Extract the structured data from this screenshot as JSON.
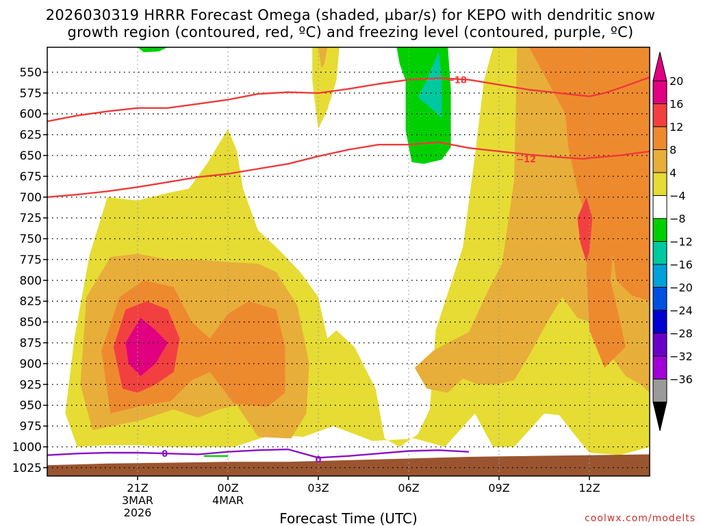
{
  "chart_data": {
    "type": "heatmap",
    "title_line1": "2026030319 HRRR Forecast Omega (shaded, µbar/s) for KEPO with dendritic snow",
    "title_line2": "growth region (contoured, red, ºC) and freezing level (contoured, purple, ºC)",
    "xlabel": "Forecast Time (UTC)",
    "credit": "coolwx.com/modelts",
    "ylabel": "",
    "y_axis": {
      "scale": "pressure (hPa), inverted",
      "ylim": [
        1035,
        520
      ],
      "ticks": [
        550,
        575,
        600,
        625,
        650,
        675,
        700,
        725,
        750,
        775,
        800,
        825,
        850,
        875,
        900,
        925,
        950,
        975,
        1000,
        1025
      ]
    },
    "x_axis": {
      "ticks": [
        {
          "hour": 21,
          "label": "21Z",
          "sub1": "3MAR",
          "sub2": "2026"
        },
        {
          "hour": 24,
          "label": "00Z",
          "sub1": "4MAR",
          "sub2": ""
        },
        {
          "hour": 27,
          "label": "03Z",
          "sub1": "",
          "sub2": ""
        },
        {
          "hour": 30,
          "label": "06Z",
          "sub1": "",
          "sub2": ""
        },
        {
          "hour": 33,
          "label": "09Z",
          "sub1": "",
          "sub2": ""
        },
        {
          "hour": 36,
          "label": "12Z",
          "sub1": "",
          "sub2": ""
        }
      ],
      "xlim": [
        18.0,
        38.0
      ]
    },
    "colorbar": {
      "labels": [
        "20",
        "16",
        "12",
        "8",
        "4",
        "−4",
        "−8",
        "−12",
        "−16",
        "−20",
        "−24",
        "−28",
        "−32",
        "−36"
      ],
      "colors": [
        "#E00080",
        "#F24040",
        "#EE8A2E",
        "#E8AE3A",
        "#E6DC34",
        "#FFFFFF",
        "#00D000",
        "#00C8A0",
        "#00A0D8",
        "#0050E0",
        "#0000D0",
        "#6A00C8",
        "#A000D8",
        "#9A9A9A"
      ],
      "top_color": "#E00080",
      "bottom_color": "#000000"
    },
    "contours": [
      {
        "name": "−18",
        "color": "#EE3A3A",
        "points": [
          [
            18,
            609
          ],
          [
            19,
            602
          ],
          [
            20,
            597
          ],
          [
            21,
            593
          ],
          [
            22,
            593
          ],
          [
            23,
            588
          ],
          [
            24,
            583
          ],
          [
            25,
            576
          ],
          [
            26,
            574
          ],
          [
            27,
            575
          ],
          [
            28,
            570
          ],
          [
            29,
            564
          ],
          [
            30,
            559
          ],
          [
            31,
            557
          ],
          [
            32,
            559
          ],
          [
            33,
            565
          ],
          [
            34,
            571
          ],
          [
            35,
            575
          ],
          [
            36,
            579
          ],
          [
            36.5,
            575
          ],
          [
            37,
            569
          ],
          [
            38,
            556
          ]
        ]
      },
      {
        "name": "−12",
        "color": "#EE3A3A",
        "points": [
          [
            18,
            700
          ],
          [
            19,
            697
          ],
          [
            20,
            693
          ],
          [
            21,
            688
          ],
          [
            22,
            682
          ],
          [
            23,
            676
          ],
          [
            24,
            672
          ],
          [
            25,
            666
          ],
          [
            26,
            660
          ],
          [
            27,
            651
          ],
          [
            28,
            643
          ],
          [
            29,
            637
          ],
          [
            30,
            637
          ],
          [
            31,
            634
          ],
          [
            32,
            641
          ],
          [
            33,
            645
          ],
          [
            34,
            649
          ],
          [
            35,
            652
          ],
          [
            35.8,
            654
          ],
          [
            36,
            653
          ],
          [
            37,
            650
          ],
          [
            38,
            645
          ]
        ]
      },
      {
        "name": "0",
        "color": "#8A10C8",
        "points": [
          [
            18,
            1010
          ],
          [
            19,
            1008
          ],
          [
            20,
            1007
          ],
          [
            21,
            1007
          ],
          [
            22,
            1008
          ],
          [
            23,
            1009
          ],
          [
            24,
            1006
          ],
          [
            25,
            1004
          ],
          [
            26,
            1003
          ],
          [
            27,
            1013
          ],
          [
            28,
            1011
          ],
          [
            29,
            1008
          ],
          [
            30,
            1005
          ],
          [
            31,
            1004
          ],
          [
            32,
            1006
          ]
        ]
      }
    ],
    "contour_labels": [
      {
        "text": "−18",
        "hour": 31.6,
        "p": 559,
        "color": "#EE3A3A"
      },
      {
        "text": "−12",
        "hour": 33.9,
        "p": 654,
        "color": "#EE3A3A"
      },
      {
        "text": "0",
        "hour": 21.9,
        "p": 1008,
        "color": "#8A10C8"
      },
      {
        "text": "0",
        "hour": 27.0,
        "p": 1015,
        "color": "#8A10C8"
      }
    ],
    "shaded_regions": [
      {
        "fill": "#E6DC34",
        "points": [
          [
            19,
            1000
          ],
          [
            18.6,
            960
          ],
          [
            18.9,
            870
          ],
          [
            19.4,
            770
          ],
          [
            20,
            700
          ],
          [
            21,
            704
          ],
          [
            22,
            695
          ],
          [
            22.7,
            690
          ],
          [
            23.3,
            660
          ],
          [
            24,
            618
          ],
          [
            24.3,
            645
          ],
          [
            24.5,
            690
          ],
          [
            25,
            740
          ],
          [
            25.6,
            760
          ],
          [
            26.4,
            790
          ],
          [
            27,
            820
          ],
          [
            27.3,
            870
          ],
          [
            27.6,
            860
          ],
          [
            28.2,
            880
          ],
          [
            28.9,
            930
          ],
          [
            29.2,
            990
          ],
          [
            29.7,
            1000
          ],
          [
            30.3,
            985
          ],
          [
            30.7,
            955
          ],
          [
            30.9,
            860
          ],
          [
            31.3,
            815
          ],
          [
            31.8,
            760
          ],
          [
            32.2,
            650
          ],
          [
            32.5,
            560
          ],
          [
            32.8,
            520
          ],
          [
            38,
            520
          ],
          [
            38,
            1000
          ],
          [
            37,
            1010
          ],
          [
            36,
            1007
          ],
          [
            35.5,
            985
          ],
          [
            35,
            962
          ],
          [
            34.5,
            960
          ],
          [
            33.5,
            1000
          ],
          [
            32.8,
            1000
          ],
          [
            32.2,
            960
          ],
          [
            31.2,
            1000
          ],
          [
            30.2,
            990
          ],
          [
            28.8,
            993
          ],
          [
            27.5,
            975
          ],
          [
            26.5,
            988
          ],
          [
            25.5,
            985
          ],
          [
            24.2,
            1000
          ],
          [
            23,
            1000
          ],
          [
            22,
            1000
          ],
          [
            21,
            998
          ],
          [
            20,
            998
          ]
        ]
      },
      {
        "fill": "#E6DC34",
        "points": [
          [
            26.8,
            520
          ],
          [
            27.7,
            520
          ],
          [
            27.6,
            560
          ],
          [
            27.3,
            595
          ],
          [
            27.0,
            618
          ],
          [
            26.9,
            590
          ],
          [
            26.8,
            560
          ]
        ]
      },
      {
        "fill": "#E8AE3A",
        "points": [
          [
            19.5,
            980
          ],
          [
            19.1,
            925
          ],
          [
            19.3,
            820
          ],
          [
            20.1,
            772
          ],
          [
            21,
            768
          ],
          [
            22,
            775
          ],
          [
            23,
            775
          ],
          [
            24,
            778
          ],
          [
            25,
            780
          ],
          [
            25.6,
            790
          ],
          [
            26.3,
            830
          ],
          [
            26.7,
            900
          ],
          [
            26.6,
            960
          ],
          [
            26.1,
            990
          ],
          [
            25,
            988
          ],
          [
            24.3,
            950
          ],
          [
            23.7,
            955
          ],
          [
            23,
            965
          ],
          [
            22.2,
            955
          ],
          [
            21.1,
            968
          ]
        ]
      },
      {
        "fill": "#E8AE3A",
        "points": [
          [
            30.2,
            905
          ],
          [
            30.8,
            885
          ],
          [
            31.3,
            875
          ],
          [
            32,
            862
          ],
          [
            32.6,
            815
          ],
          [
            33.1,
            780
          ],
          [
            33.5,
            680
          ],
          [
            33.6,
            520
          ],
          [
            38,
            520
          ],
          [
            38,
            935
          ],
          [
            37.7,
            925
          ],
          [
            37.2,
            915
          ],
          [
            36.8,
            895
          ],
          [
            36.5,
            860
          ],
          [
            36,
            850
          ],
          [
            35.6,
            845
          ],
          [
            35.1,
            820
          ],
          [
            34.6,
            850
          ],
          [
            34,
            890
          ],
          [
            33.5,
            920
          ],
          [
            32.9,
            925
          ],
          [
            32.3,
            925
          ],
          [
            31.8,
            918
          ],
          [
            31.3,
            935
          ],
          [
            30.6,
            930
          ]
        ]
      },
      {
        "fill": "#E8AE3A",
        "points": [
          [
            27.0,
            520
          ],
          [
            27.3,
            520
          ],
          [
            27.2,
            540
          ],
          [
            27.1,
            545
          ]
        ]
      },
      {
        "fill": "#EE8A2E",
        "points": [
          [
            20.1,
            960
          ],
          [
            19.8,
            885
          ],
          [
            20.4,
            820
          ],
          [
            21.2,
            800
          ],
          [
            22.2,
            808
          ],
          [
            22.8,
            850
          ],
          [
            23.4,
            870
          ],
          [
            24,
            840
          ],
          [
            24.7,
            825
          ],
          [
            25.6,
            835
          ],
          [
            25.9,
            880
          ],
          [
            25.9,
            935
          ],
          [
            25.3,
            952
          ],
          [
            24.2,
            948
          ],
          [
            23.4,
            910
          ],
          [
            22.8,
            920
          ],
          [
            22.1,
            945
          ],
          [
            21.2,
            950
          ]
        ]
      },
      {
        "fill": "#EE8A2E",
        "points": [
          [
            34.0,
            520
          ],
          [
            37.6,
            520
          ],
          [
            38,
            520
          ],
          [
            38,
            825
          ],
          [
            37.4,
            818
          ],
          [
            36.9,
            800
          ],
          [
            36.6,
            720
          ],
          [
            36.4,
            670
          ],
          [
            36.2,
            700
          ],
          [
            36.0,
            740
          ],
          [
            35.6,
            690
          ],
          [
            35.3,
            640
          ],
          [
            35.2,
            600
          ],
          [
            34.6,
            560
          ]
        ]
      },
      {
        "fill": "#EE8A2E",
        "points": [
          [
            36.3,
            660
          ],
          [
            36.7,
            700
          ],
          [
            36.8,
            760
          ],
          [
            36.7,
            800
          ],
          [
            36.9,
            830
          ],
          [
            37.2,
            880
          ],
          [
            36.5,
            905
          ],
          [
            36,
            860
          ],
          [
            35.9,
            790
          ],
          [
            36,
            720
          ]
        ]
      },
      {
        "fill": "#F24040",
        "points": [
          [
            20.5,
            930
          ],
          [
            20.2,
            880
          ],
          [
            20.6,
            835
          ],
          [
            21.3,
            825
          ],
          [
            22,
            835
          ],
          [
            22.4,
            870
          ],
          [
            22.2,
            910
          ],
          [
            21.6,
            925
          ],
          [
            21.0,
            935
          ]
        ]
      },
      {
        "fill": "#F24040",
        "points": [
          [
            35.9,
            700
          ],
          [
            36.1,
            725
          ],
          [
            36.0,
            765
          ],
          [
            35.9,
            778
          ],
          [
            35.7,
            755
          ],
          [
            35.6,
            725
          ]
        ]
      },
      {
        "fill": "#E00080",
        "points": [
          [
            20.6,
            875
          ],
          [
            21.1,
            845
          ],
          [
            21.6,
            860
          ],
          [
            22.0,
            875
          ],
          [
            21.6,
            900
          ],
          [
            21.1,
            915
          ],
          [
            20.7,
            900
          ]
        ]
      },
      {
        "fill": "#00D000",
        "points": [
          [
            21,
            520
          ],
          [
            22,
            520
          ],
          [
            21.7,
            525
          ],
          [
            21.2,
            526
          ]
        ]
      },
      {
        "fill": "#00D000",
        "points": [
          [
            29.6,
            520
          ],
          [
            31.3,
            520
          ],
          [
            31.4,
            570
          ],
          [
            31.4,
            640
          ],
          [
            31.1,
            655
          ],
          [
            30.5,
            660
          ],
          [
            30.1,
            658
          ],
          [
            29.9,
            620
          ],
          [
            29.9,
            560
          ],
          [
            29.7,
            540
          ]
        ]
      },
      {
        "fill": "#00D000",
        "points": [
          [
            23.2,
            1010
          ],
          [
            24.0,
            1010
          ],
          [
            24.0,
            1012
          ],
          [
            23.2,
            1012
          ]
        ]
      },
      {
        "fill": "#00C8A0",
        "points": [
          [
            30.7,
            550
          ],
          [
            31.0,
            525
          ],
          [
            31.1,
            560
          ],
          [
            31.1,
            605
          ],
          [
            30.8,
            595
          ],
          [
            30.3,
            580
          ],
          [
            30.6,
            560
          ]
        ]
      },
      {
        "fill": "#9A5530",
        "points": [
          [
            18,
            1022
          ],
          [
            20,
            1020
          ],
          [
            22,
            1019
          ],
          [
            24,
            1018
          ],
          [
            26,
            1018
          ],
          [
            28,
            1016
          ],
          [
            30,
            1014
          ],
          [
            32,
            1012
          ],
          [
            34,
            1011
          ],
          [
            36,
            1010
          ],
          [
            38,
            1009
          ],
          [
            38,
            1040
          ],
          [
            18,
            1040
          ]
        ]
      }
    ]
  }
}
